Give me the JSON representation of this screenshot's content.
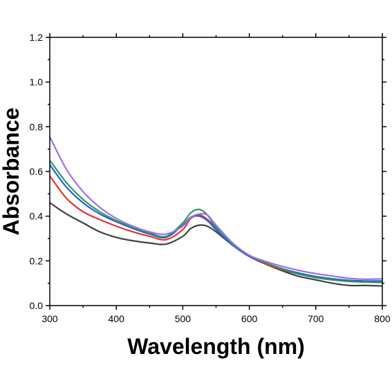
{
  "chart_data": {
    "type": "line",
    "title": "",
    "xlabel": "Wavelength (nm)",
    "ylabel": "Absorbance",
    "xlim": [
      300,
      800
    ],
    "ylim": [
      0.0,
      1.2
    ],
    "xticks": [
      300,
      400,
      500,
      600,
      700,
      800
    ],
    "yticks": [
      0.0,
      0.2,
      0.4,
      0.6,
      0.8,
      1.0,
      1.2
    ],
    "xtick_labels": [
      "300",
      "400",
      "500",
      "600",
      "700",
      "800"
    ],
    "ytick_labels": [
      "0.0",
      "0.2",
      "0.4",
      "0.6",
      "0.8",
      "1.0",
      "1.2"
    ],
    "grid": false,
    "legend": "none",
    "x": [
      300,
      325,
      350,
      375,
      400,
      425,
      450,
      475,
      500,
      512,
      525,
      537,
      550,
      575,
      600,
      625,
      650,
      675,
      700,
      725,
      750,
      775,
      800
    ],
    "series": [
      {
        "color": "#404040",
        "values": [
          0.46,
          0.41,
          0.37,
          0.33,
          0.305,
          0.29,
          0.28,
          0.275,
          0.31,
          0.345,
          0.36,
          0.355,
          0.33,
          0.27,
          0.22,
          0.185,
          0.155,
          0.13,
          0.115,
          0.1,
          0.09,
          0.09,
          0.088
        ]
      },
      {
        "color": "#e8302a",
        "values": [
          0.58,
          0.48,
          0.42,
          0.385,
          0.355,
          0.33,
          0.31,
          0.295,
          0.34,
          0.39,
          0.405,
          0.385,
          0.345,
          0.275,
          0.22,
          0.185,
          0.16,
          0.14,
          0.125,
          0.115,
          0.11,
          0.108,
          0.108
        ]
      },
      {
        "color": "#2060e0",
        "values": [
          0.63,
          0.53,
          0.46,
          0.41,
          0.375,
          0.345,
          0.32,
          0.305,
          0.36,
          0.395,
          0.4,
          0.38,
          0.34,
          0.27,
          0.22,
          0.19,
          0.165,
          0.145,
          0.13,
          0.12,
          0.113,
          0.11,
          0.11
        ]
      },
      {
        "color": "#2a9a55",
        "values": [
          0.65,
          0.55,
          0.475,
          0.42,
          0.38,
          0.35,
          0.325,
          0.31,
          0.37,
          0.415,
          0.43,
          0.405,
          0.35,
          0.275,
          0.225,
          0.19,
          0.163,
          0.14,
          0.125,
          0.115,
          0.108,
          0.105,
          0.103
        ]
      },
      {
        "color": "#a070e0",
        "values": [
          0.755,
          0.61,
          0.51,
          0.44,
          0.39,
          0.355,
          0.33,
          0.32,
          0.355,
          0.395,
          0.41,
          0.405,
          0.36,
          0.28,
          0.225,
          0.197,
          0.175,
          0.157,
          0.143,
          0.132,
          0.122,
          0.118,
          0.12
        ]
      }
    ]
  }
}
